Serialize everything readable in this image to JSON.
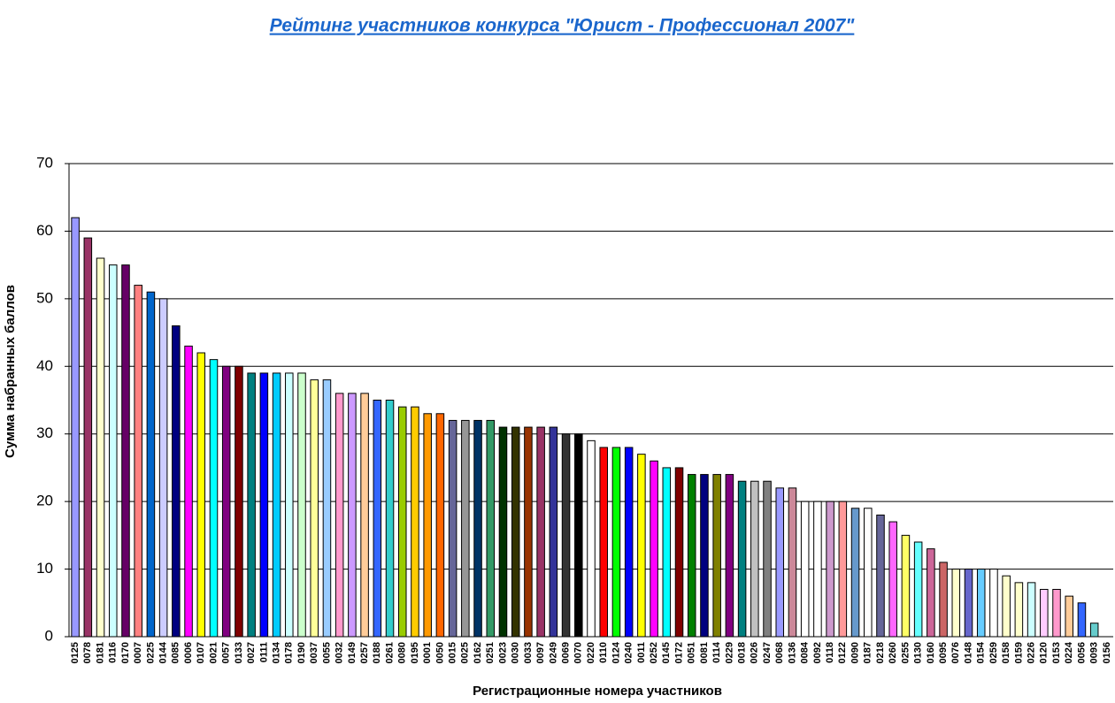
{
  "chart_data": {
    "type": "bar",
    "title": "Рейтинг участников конкурса \"Юрист - Профессионал 2007\"",
    "y_label": "Сумма набранных баллов",
    "x_label": "Регистрационные номера участников",
    "categories": [
      "0125",
      "0078",
      "0181",
      "0116",
      "0170",
      "0007",
      "0225",
      "0144",
      "0085",
      "0006",
      "0107",
      "0021",
      "0057",
      "0133",
      "0027",
      "0111",
      "0134",
      "0178",
      "0190",
      "0037",
      "0055",
      "0032",
      "0149",
      "0257",
      "0188",
      "0261",
      "0080",
      "0195",
      "0001",
      "0050",
      "0015",
      "0025",
      "0162",
      "0251",
      "0023",
      "0030",
      "0033",
      "0097",
      "0249",
      "0069",
      "0070",
      "0220",
      "0110",
      "0124",
      "0240",
      "0011",
      "0252",
      "0145",
      "0172",
      "0051",
      "0081",
      "0114",
      "0229",
      "0018",
      "0026",
      "0247",
      "0068",
      "0136",
      "0084",
      "0092",
      "0118",
      "0122",
      "0090",
      "0187",
      "0218",
      "0260",
      "0255",
      "0130",
      "0160",
      "0095",
      "0076",
      "0148",
      "0154",
      "0259",
      "0158",
      "0159",
      "0226",
      "0120",
      "0153",
      "0224",
      "0056",
      "0093",
      "0156"
    ],
    "values": [
      62,
      59,
      56,
      55,
      55,
      52,
      51,
      50,
      46,
      43,
      42,
      41,
      40,
      40,
      39,
      39,
      39,
      39,
      39,
      38,
      38,
      36,
      36,
      36,
      35,
      35,
      34,
      34,
      33,
      33,
      32,
      32,
      32,
      32,
      31,
      31,
      31,
      31,
      31,
      30,
      30,
      29,
      28,
      28,
      28,
      27,
      26,
      25,
      25,
      24,
      24,
      24,
      24,
      23,
      23,
      23,
      22,
      22,
      20,
      20,
      20,
      20,
      19,
      19,
      18,
      17,
      15,
      14,
      13,
      11,
      10,
      10,
      10,
      10,
      9,
      8,
      8,
      7,
      7,
      6,
      5,
      2,
      0
    ],
    "colors": [
      "#9999ff",
      "#993366",
      "#ffffcc",
      "#ccffff",
      "#660066",
      "#ff8080",
      "#0066cc",
      "#ccccff",
      "#000080",
      "#ff00ff",
      "#ffff00",
      "#00ffff",
      "#800080",
      "#800000",
      "#008080",
      "#0000ff",
      "#00ccff",
      "#ccffff",
      "#ccffcc",
      "#ffff99",
      "#99ccff",
      "#ff99cc",
      "#cc99ff",
      "#ffcc99",
      "#3366ff",
      "#33cccc",
      "#99cc00",
      "#ffcc00",
      "#ff9900",
      "#ff6600",
      "#666699",
      "#969696",
      "#003366",
      "#339966",
      "#003300",
      "#333300",
      "#993300",
      "#993366",
      "#333399",
      "#333333",
      "#000000",
      "#ffffff",
      "#ff0000",
      "#00ff00",
      "#0000ff",
      "#ffff00",
      "#ff00ff",
      "#00ffff",
      "#800000",
      "#008000",
      "#000080",
      "#808000",
      "#800080",
      "#008080",
      "#c0c0c0",
      "#808080",
      "#9999ff",
      "#cc8899",
      "#ffffff",
      "#ffffff",
      "#cc99cc",
      "#ff9999",
      "#6699cc",
      "#ffffff",
      "#666699",
      "#ff66ff",
      "#ffff66",
      "#66ffff",
      "#cc6699",
      "#cc6666",
      "#ffffcc",
      "#6666cc",
      "#66ccff",
      "#ffffff",
      "#ffffcc",
      "#ffffcc",
      "#ccffff",
      "#ffccff",
      "#ff99cc",
      "#ffcc99",
      "#3366ff",
      "#66cccc",
      "#ffffff"
    ],
    "ylim": [
      0,
      70
    ],
    "yticks": [
      0,
      10,
      20,
      30,
      40,
      50,
      60,
      70
    ],
    "grid": true
  }
}
